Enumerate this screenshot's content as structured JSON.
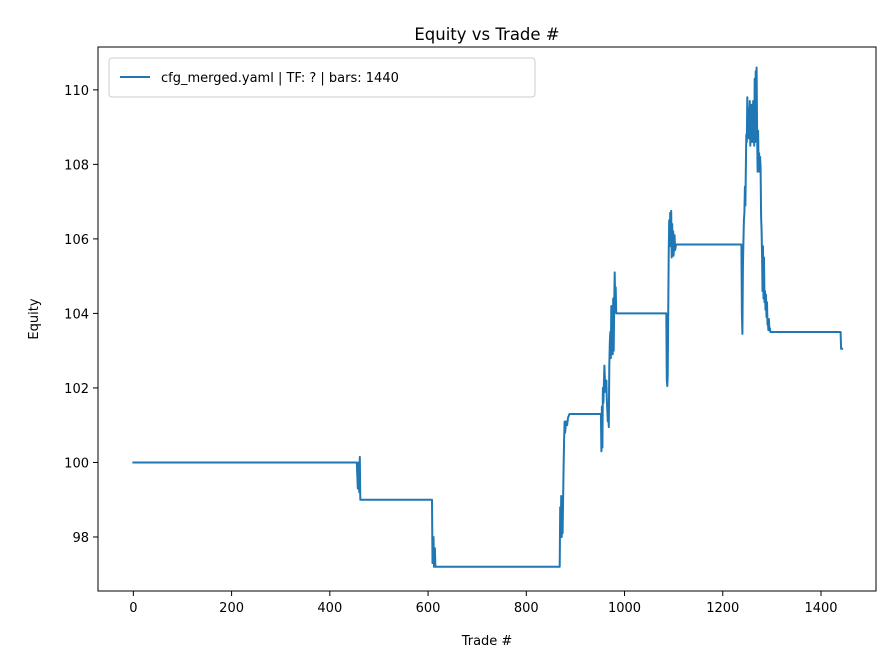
{
  "chart_data": {
    "type": "line",
    "title": "Equity vs Trade #",
    "xlabel": "Trade #",
    "ylabel": "Equity",
    "xlim": [
      -72,
      1512
    ],
    "ylim": [
      96.55,
      111.15
    ],
    "xticks": [
      0,
      200,
      400,
      600,
      800,
      1000,
      1200,
      1400
    ],
    "yticks": [
      98,
      100,
      102,
      104,
      106,
      108,
      110
    ],
    "grid": false,
    "legend_position": "top-left",
    "series": [
      {
        "name": "cfg_merged.yaml | TF: ? | bars: 1440",
        "color": "#1f77b4",
        "points": [
          [
            0,
            100.0
          ],
          [
            455,
            100.0
          ],
          [
            457,
            99.3
          ],
          [
            458,
            100.0
          ],
          [
            460,
            99.2
          ],
          [
            461,
            100.15
          ],
          [
            462,
            99.0
          ],
          [
            608,
            99.0
          ],
          [
            609,
            97.3
          ],
          [
            611,
            98.0
          ],
          [
            612,
            97.2
          ],
          [
            614,
            97.7
          ],
          [
            615,
            97.2
          ],
          [
            868,
            97.2
          ],
          [
            869,
            98.8
          ],
          [
            870,
            98.0
          ],
          [
            871,
            99.1
          ],
          [
            872,
            98.0
          ],
          [
            873,
            99.0
          ],
          [
            874,
            98.1
          ],
          [
            876,
            99.9
          ],
          [
            877,
            100.6
          ],
          [
            878,
            101.1
          ],
          [
            879,
            100.8
          ],
          [
            881,
            101.1
          ],
          [
            883,
            101.0
          ],
          [
            885,
            101.2
          ],
          [
            888,
            101.3
          ],
          [
            952,
            101.3
          ],
          [
            953,
            100.3
          ],
          [
            954,
            101.5
          ],
          [
            955,
            100.4
          ],
          [
            956,
            102.0
          ],
          [
            957,
            101.6
          ],
          [
            959,
            102.6
          ],
          [
            961,
            101.9
          ],
          [
            963,
            102.2
          ],
          [
            964,
            101.7
          ],
          [
            966,
            101.1
          ],
          [
            967,
            101.4
          ],
          [
            968,
            100.95
          ],
          [
            969,
            102.6
          ],
          [
            970,
            103.2
          ],
          [
            971,
            103.5
          ],
          [
            972,
            102.8
          ],
          [
            973,
            104.2
          ],
          [
            974,
            103.6
          ],
          [
            975,
            104.0
          ],
          [
            976,
            102.9
          ],
          [
            977,
            104.4
          ],
          [
            978,
            103.0
          ],
          [
            979,
            104.2
          ],
          [
            980,
            105.1
          ],
          [
            981,
            104.2
          ],
          [
            982,
            104.7
          ],
          [
            983,
            104.0
          ],
          [
            1085,
            104.0
          ],
          [
            1086,
            102.2
          ],
          [
            1087,
            102.05
          ],
          [
            1088,
            102.3
          ],
          [
            1090,
            105.6
          ],
          [
            1091,
            106.5
          ],
          [
            1092,
            105.8
          ],
          [
            1093,
            106.7
          ],
          [
            1094,
            106.2
          ],
          [
            1095,
            106.75
          ],
          [
            1096,
            105.5
          ],
          [
            1097,
            106.4
          ],
          [
            1098,
            105.6
          ],
          [
            1099,
            106.2
          ],
          [
            1100,
            105.55
          ],
          [
            1101,
            105.9
          ],
          [
            1102,
            106.1
          ],
          [
            1103,
            105.7
          ],
          [
            1105,
            105.85
          ],
          [
            1238,
            105.85
          ],
          [
            1239,
            104.0
          ],
          [
            1240,
            103.45
          ],
          [
            1241,
            105.2
          ],
          [
            1242,
            105.9
          ],
          [
            1243,
            106.5
          ],
          [
            1244,
            106.7
          ],
          [
            1245,
            107.4
          ],
          [
            1246,
            106.9
          ],
          [
            1247,
            107.8
          ],
          [
            1248,
            108.8
          ],
          [
            1249,
            108.6
          ],
          [
            1250,
            109.8
          ],
          [
            1251,
            108.9
          ],
          [
            1252,
            109.5
          ],
          [
            1253,
            108.7
          ],
          [
            1254,
            109.2
          ],
          [
            1255,
            109.7
          ],
          [
            1256,
            108.5
          ],
          [
            1257,
            109.1
          ],
          [
            1258,
            108.8
          ],
          [
            1259,
            109.6
          ],
          [
            1260,
            108.6
          ],
          [
            1262,
            109.7
          ],
          [
            1264,
            108.5
          ],
          [
            1265,
            110.3
          ],
          [
            1266,
            108.6
          ],
          [
            1267,
            110.5
          ],
          [
            1268,
            109.7
          ],
          [
            1269,
            110.6
          ],
          [
            1270,
            108.9
          ],
          [
            1271,
            107.8
          ],
          [
            1272,
            108.9
          ],
          [
            1273,
            108.0
          ],
          [
            1274,
            108.3
          ],
          [
            1275,
            107.8
          ],
          [
            1276,
            108.2
          ],
          [
            1277,
            107.9
          ],
          [
            1278,
            106.6
          ],
          [
            1279,
            106.2
          ],
          [
            1280,
            105.5
          ],
          [
            1281,
            104.6
          ],
          [
            1282,
            105.8
          ],
          [
            1283,
            104.4
          ],
          [
            1284,
            105.5
          ],
          [
            1285,
            104.3
          ],
          [
            1286,
            104.6
          ],
          [
            1287,
            104.1
          ],
          [
            1288,
            104.5
          ],
          [
            1289,
            103.9
          ],
          [
            1290,
            104.3
          ],
          [
            1291,
            103.7
          ],
          [
            1292,
            103.75
          ],
          [
            1293,
            103.55
          ],
          [
            1294,
            103.85
          ],
          [
            1295,
            103.55
          ],
          [
            1296,
            103.6
          ],
          [
            1297,
            103.5
          ],
          [
            1440,
            103.5
          ],
          [
            1441,
            103.05
          ],
          [
            1443,
            103.05
          ]
        ]
      }
    ]
  }
}
